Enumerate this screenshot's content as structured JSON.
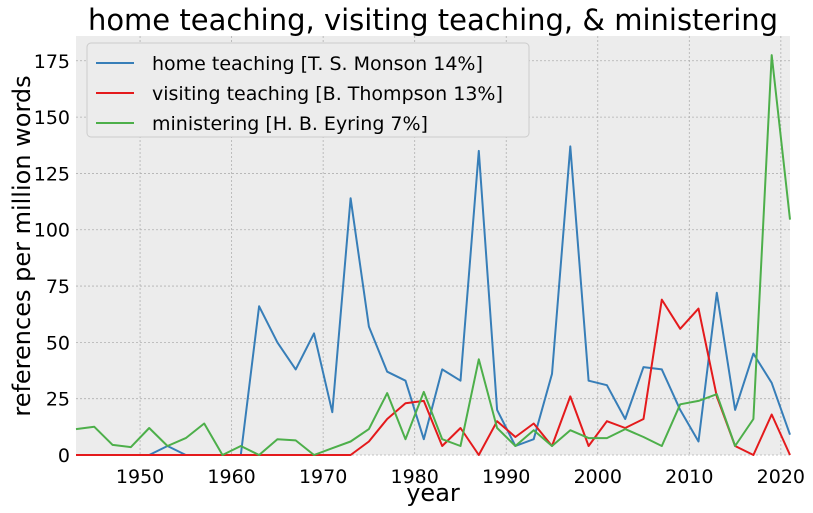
{
  "chart_data": {
    "type": "line",
    "title": "home teaching, visiting teaching, & ministering",
    "xlabel": "year",
    "ylabel": "references per million words",
    "xlim": [
      1943,
      2021
    ],
    "ylim": [
      0,
      186
    ],
    "xticks": [
      1950,
      1960,
      1970,
      1980,
      1990,
      2000,
      2010,
      2020
    ],
    "yticks": [
      0,
      25,
      50,
      75,
      100,
      125,
      150,
      175
    ],
    "grid": true,
    "legend_position": "top-left",
    "background": "#ececec",
    "series": [
      {
        "name": "home teaching [T. S. Monson 14%]",
        "color": "#377eb8",
        "x": [
          1943,
          1945,
          1947,
          1949,
          1951,
          1953,
          1955,
          1957,
          1959,
          1961,
          1963,
          1965,
          1967,
          1969,
          1971,
          1973,
          1975,
          1977,
          1979,
          1981,
          1983,
          1985,
          1987,
          1989,
          1991,
          1993,
          1995,
          1997,
          1999,
          2001,
          2003,
          2005,
          2007,
          2009,
          2011,
          2013,
          2015,
          2017,
          2019,
          2021
        ],
        "y": [
          0,
          0,
          0,
          0,
          0,
          4,
          0,
          0,
          0,
          0,
          66,
          50,
          38,
          54,
          19,
          114,
          57,
          37,
          33,
          7,
          38,
          33,
          135,
          20,
          4,
          7,
          36,
          137,
          33,
          31,
          16,
          39,
          38,
          20,
          6,
          72,
          20,
          45,
          32,
          9
        ]
      },
      {
        "name": "visiting teaching [B. Thompson 13%]",
        "color": "#e41a1c",
        "x": [
          1943,
          1945,
          1947,
          1949,
          1951,
          1953,
          1955,
          1957,
          1959,
          1961,
          1963,
          1965,
          1967,
          1969,
          1971,
          1973,
          1975,
          1977,
          1979,
          1981,
          1983,
          1985,
          1987,
          1989,
          1991,
          1993,
          1995,
          1997,
          1999,
          2001,
          2003,
          2005,
          2007,
          2009,
          2011,
          2013,
          2015,
          2017,
          2019,
          2021
        ],
        "y": [
          0,
          0,
          0,
          0,
          0,
          0,
          0,
          0,
          0,
          0,
          0,
          0,
          0,
          0,
          0,
          0,
          6,
          16,
          23,
          24,
          4,
          12,
          0,
          15,
          8,
          14,
          4,
          26,
          4,
          15,
          12,
          16,
          69,
          56,
          65,
          26,
          4,
          0,
          18,
          0
        ]
      },
      {
        "name": "ministering [H. B. Eyring 7%]",
        "color": "#4daf4a",
        "x": [
          1943,
          1945,
          1947,
          1949,
          1951,
          1953,
          1955,
          1957,
          1959,
          1961,
          1963,
          1965,
          1967,
          1969,
          1971,
          1973,
          1975,
          1977,
          1979,
          1981,
          1983,
          1985,
          1987,
          1989,
          1991,
          1993,
          1995,
          1997,
          1999,
          2001,
          2003,
          2005,
          2007,
          2009,
          2011,
          2013,
          2015,
          2017,
          2019,
          2021
        ],
        "y": [
          11.5,
          12.5,
          4.5,
          3.5,
          12,
          4,
          7.5,
          14,
          0,
          4,
          0,
          7,
          6.5,
          0,
          3,
          6,
          11.5,
          27.5,
          7,
          28,
          7,
          4,
          42.5,
          12,
          4,
          11,
          4,
          11,
          7.5,
          7.5,
          11.5,
          8,
          4,
          22.5,
          24,
          27,
          4,
          16,
          177.5,
          104.5
        ]
      }
    ]
  }
}
